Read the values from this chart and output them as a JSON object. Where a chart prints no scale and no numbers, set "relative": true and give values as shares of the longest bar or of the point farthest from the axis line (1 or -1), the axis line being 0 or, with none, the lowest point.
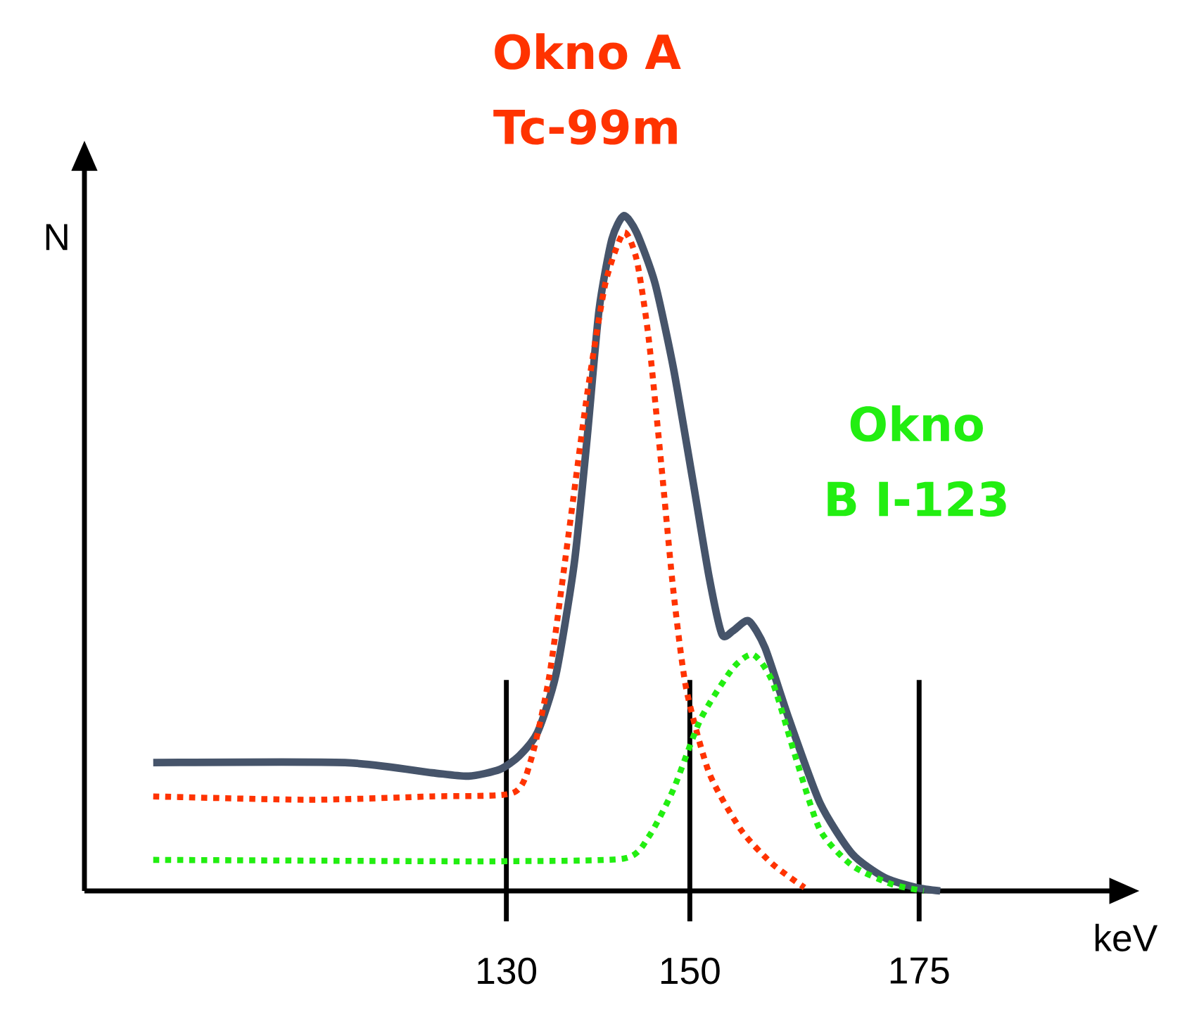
{
  "chart_data": {
    "type": "line",
    "xlabel": "keV",
    "ylabel": "N",
    "relative": true,
    "xlim": [
      84,
      196
    ],
    "xticks": [
      130,
      150,
      175
    ],
    "marker": "none",
    "series": [
      {
        "color": "#46546a",
        "line_style": "solid",
        "x": [
          91.5,
          112.4,
          121.9,
          125.9,
          129.3,
          131.4,
          133.4,
          135.4,
          137.4,
          138.8,
          140.1,
          141.5,
          142.8,
          144.2,
          146.2,
          148.2,
          150.3,
          152.1,
          153.5,
          154.7,
          156.4,
          158.2,
          160.8,
          164.2,
          167.7,
          171.2,
          174.7,
          177.3
        ],
        "values": [
          0.19,
          0.19,
          0.175,
          0.17,
          0.18,
          0.2,
          0.235,
          0.32,
          0.485,
          0.67,
          0.86,
          0.965,
          1,
          0.975,
          0.9,
          0.775,
          0.61,
          0.465,
          0.38,
          0.385,
          0.4,
          0.36,
          0.255,
          0.13,
          0.055,
          0.02,
          0.005,
          0
        ]
      },
      {
        "name": "Okno A Tc-99m",
        "color": "#ff3300",
        "line_style": "dotted",
        "x": [
          91.5,
          108.4,
          121.9,
          130.7,
          132.7,
          134.7,
          136.8,
          138.8,
          140.8,
          142.8,
          144.2,
          145.5,
          146.9,
          148.2,
          149.6,
          152.1,
          155.6,
          159.0,
          162.5
        ],
        "values": [
          0.14,
          0.135,
          0.14,
          0.145,
          0.195,
          0.32,
          0.53,
          0.735,
          0.9,
          0.975,
          0.935,
          0.82,
          0.63,
          0.445,
          0.3,
          0.175,
          0.09,
          0.04,
          0.005
        ]
      },
      {
        "name": "Okno B I-123",
        "color": "#22ee11",
        "line_style": "dotted",
        "x": [
          91.5,
          121.9,
          130,
          142.8,
          145.5,
          148.2,
          151.2,
          154.7,
          156.9,
          159.0,
          161.6,
          164.2,
          167.7,
          172.0,
          175.5
        ],
        "values": [
          0.046,
          0.044,
          0.044,
          0.048,
          0.08,
          0.15,
          0.255,
          0.33,
          0.35,
          0.31,
          0.195,
          0.09,
          0.0375,
          0.01,
          0
        ]
      }
    ],
    "ref_lines": [
      {
        "axis": "x",
        "value": 130,
        "color": "#000000"
      },
      {
        "axis": "x",
        "value": 150,
        "color": "#000000"
      },
      {
        "axis": "x",
        "value": 175,
        "color": "#000000"
      }
    ]
  }
}
